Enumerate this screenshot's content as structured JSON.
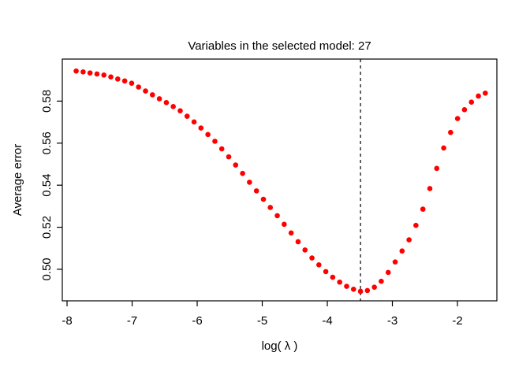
{
  "window": {
    "background": "#ffffff"
  },
  "chart_data": {
    "type": "scatter",
    "title": "Variables in the selected model: 27",
    "xlabel": "log( λ )",
    "ylabel": "Average error",
    "point_color": "#ff0000",
    "box_color": "#000000",
    "vline_color": "#000000",
    "vline_style": "dashed",
    "vline_x": -3.49,
    "grid": false,
    "legend": "none",
    "xlim": [
      -8.073,
      -1.394
    ],
    "ylim": [
      0.485,
      0.6
    ],
    "xticks": [
      -8,
      -7,
      -6,
      -5,
      -4,
      -3,
      -2
    ],
    "xtick_labels": [
      "-8",
      "-7",
      "-6",
      "-5",
      "-4",
      "-3",
      "-2"
    ],
    "yticks": [
      0.5,
      0.52,
      0.54,
      0.56,
      0.58
    ],
    "ytick_labels": [
      "0.50",
      "0.52",
      "0.54",
      "0.56",
      "0.58"
    ],
    "x": [
      -7.86,
      -7.753,
      -7.647,
      -7.54,
      -7.434,
      -7.327,
      -7.221,
      -7.114,
      -7.007,
      -6.901,
      -6.794,
      -6.688,
      -6.581,
      -6.474,
      -6.368,
      -6.261,
      -6.155,
      -6.048,
      -5.942,
      -5.835,
      -5.728,
      -5.622,
      -5.515,
      -5.409,
      -5.302,
      -5.196,
      -5.089,
      -4.982,
      -4.876,
      -4.769,
      -4.663,
      -4.556,
      -4.449,
      -4.343,
      -4.236,
      -4.13,
      -4.023,
      -3.917,
      -3.81,
      -3.703,
      -3.597,
      -3.49,
      -3.384,
      -3.277,
      -3.171,
      -3.064,
      -2.957,
      -2.851,
      -2.744,
      -2.638,
      -2.531,
      -2.424,
      -2.318,
      -2.211,
      -2.105,
      -1.998,
      -1.892,
      -1.785,
      -1.678,
      -1.572
    ],
    "y": [
      0.5943,
      0.5939,
      0.5934,
      0.5929,
      0.5924,
      0.5915,
      0.5905,
      0.5896,
      0.5885,
      0.5867,
      0.5848,
      0.583,
      0.5811,
      0.5793,
      0.5774,
      0.5754,
      0.5728,
      0.5701,
      0.5672,
      0.5641,
      0.5609,
      0.5573,
      0.5535,
      0.5496,
      0.5456,
      0.5414,
      0.5373,
      0.5333,
      0.5294,
      0.5255,
      0.5214,
      0.5173,
      0.5131,
      0.5092,
      0.5054,
      0.5021,
      0.4989,
      0.4962,
      0.4939,
      0.4919,
      0.4905,
      0.4895,
      0.4899,
      0.4915,
      0.4943,
      0.4985,
      0.5035,
      0.5087,
      0.514,
      0.5209,
      0.5286,
      0.5384,
      0.548,
      0.5577,
      0.5651,
      0.5717,
      0.5759,
      0.5795,
      0.5824,
      0.5838
    ]
  }
}
